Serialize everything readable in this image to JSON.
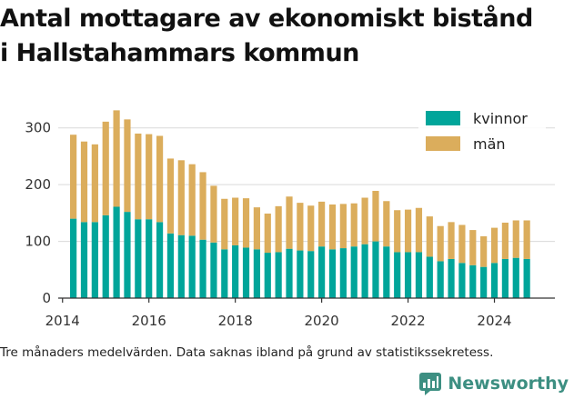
{
  "title_lines": [
    "Antal mottagare av ekonomiskt bistånd",
    "i Hallstahammars kommun"
  ],
  "footnote": "Tre månaders medelvärden. Data saknas ibland på grund av statistikssekretess.",
  "brand": {
    "label": "Newsworthy",
    "icon": "newsworthy-logo-icon"
  },
  "colors": {
    "kvinnor": "#00a59a",
    "man": "#dbad5c",
    "grid": "#d9d9d9",
    "axis": "#333333"
  },
  "chart_data": {
    "type": "bar",
    "stacked": true,
    "title": "Antal mottagare av ekonomiskt bistånd i Hallstahammars kommun",
    "xlabel": "",
    "ylabel": "",
    "x_ticks": [
      2014,
      2016,
      2018,
      2020,
      2022,
      2024
    ],
    "y_ticks": [
      0,
      100,
      200,
      300
    ],
    "xlim": [
      2013.9,
      2025.4
    ],
    "ylim": [
      0,
      330
    ],
    "grid": "horizontal",
    "legend_position": "top-right",
    "x": [
      2014.25,
      2014.5,
      2014.75,
      2015.0,
      2015.25,
      2015.5,
      2015.75,
      2016.0,
      2016.25,
      2016.5,
      2016.75,
      2017.0,
      2017.25,
      2017.5,
      2017.75,
      2018.0,
      2018.25,
      2018.5,
      2018.75,
      2019.0,
      2019.25,
      2019.5,
      2019.75,
      2020.0,
      2020.25,
      2020.5,
      2020.75,
      2021.0,
      2021.25,
      2021.5,
      2021.75,
      2022.0,
      2022.25,
      2022.5,
      2022.75,
      2023.0,
      2023.25,
      2023.5,
      2023.75,
      2024.0,
      2024.25,
      2024.5,
      2024.75
    ],
    "series": [
      {
        "name": "kvinnor",
        "color": "#00a59a",
        "values": [
          140,
          134,
          134,
          146,
          161,
          152,
          139,
          139,
          134,
          114,
          111,
          110,
          103,
          98,
          86,
          93,
          89,
          86,
          80,
          81,
          87,
          84,
          83,
          91,
          86,
          88,
          91,
          95,
          100,
          91,
          81,
          81,
          81,
          73,
          65,
          69,
          62,
          58,
          55,
          62,
          69,
          71,
          69
        ]
      },
      {
        "name": "män",
        "color": "#dbad5c",
        "values": [
          148,
          142,
          137,
          165,
          170,
          163,
          151,
          150,
          152,
          132,
          132,
          126,
          119,
          100,
          89,
          84,
          87,
          74,
          69,
          81,
          92,
          84,
          80,
          79,
          79,
          78,
          76,
          82,
          89,
          80,
          74,
          75,
          78,
          71,
          62,
          65,
          67,
          62,
          54,
          62,
          64,
          66,
          68
        ]
      }
    ]
  }
}
